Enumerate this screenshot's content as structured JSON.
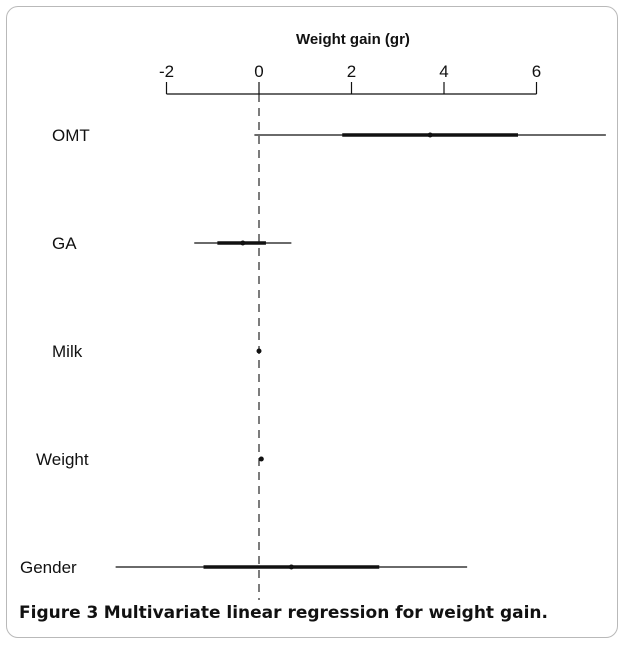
{
  "chart_data": {
    "type": "forest",
    "xlabel": "Weight gain (gr)",
    "x_ticks": [
      -2,
      0,
      2,
      4,
      6
    ],
    "xlim": [
      -2.7,
      7.5
    ],
    "reference_line_x": 0,
    "rows": [
      {
        "label": "OMT",
        "estimate": 3.7,
        "inner": [
          1.8,
          5.6
        ],
        "outer": [
          -0.1,
          7.5
        ]
      },
      {
        "label": "GA",
        "estimate": -0.35,
        "inner": [
          -0.9,
          0.15
        ],
        "outer": [
          -1.4,
          0.7
        ]
      },
      {
        "label": "Milk",
        "estimate": 0.0,
        "inner": [
          0.0,
          0.0
        ],
        "outer": [
          0.0,
          0.0
        ]
      },
      {
        "label": "Weight",
        "estimate": 0.05,
        "inner": [
          0.05,
          0.05
        ],
        "outer": [
          0.05,
          0.05
        ]
      },
      {
        "label": "Gender",
        "estimate": 0.7,
        "inner": [
          -1.2,
          2.6
        ],
        "outer": [
          -3.1,
          4.5
        ]
      }
    ]
  },
  "caption": {
    "label": "Figure 3",
    "text": "Multivariate linear regression for weight gain."
  }
}
